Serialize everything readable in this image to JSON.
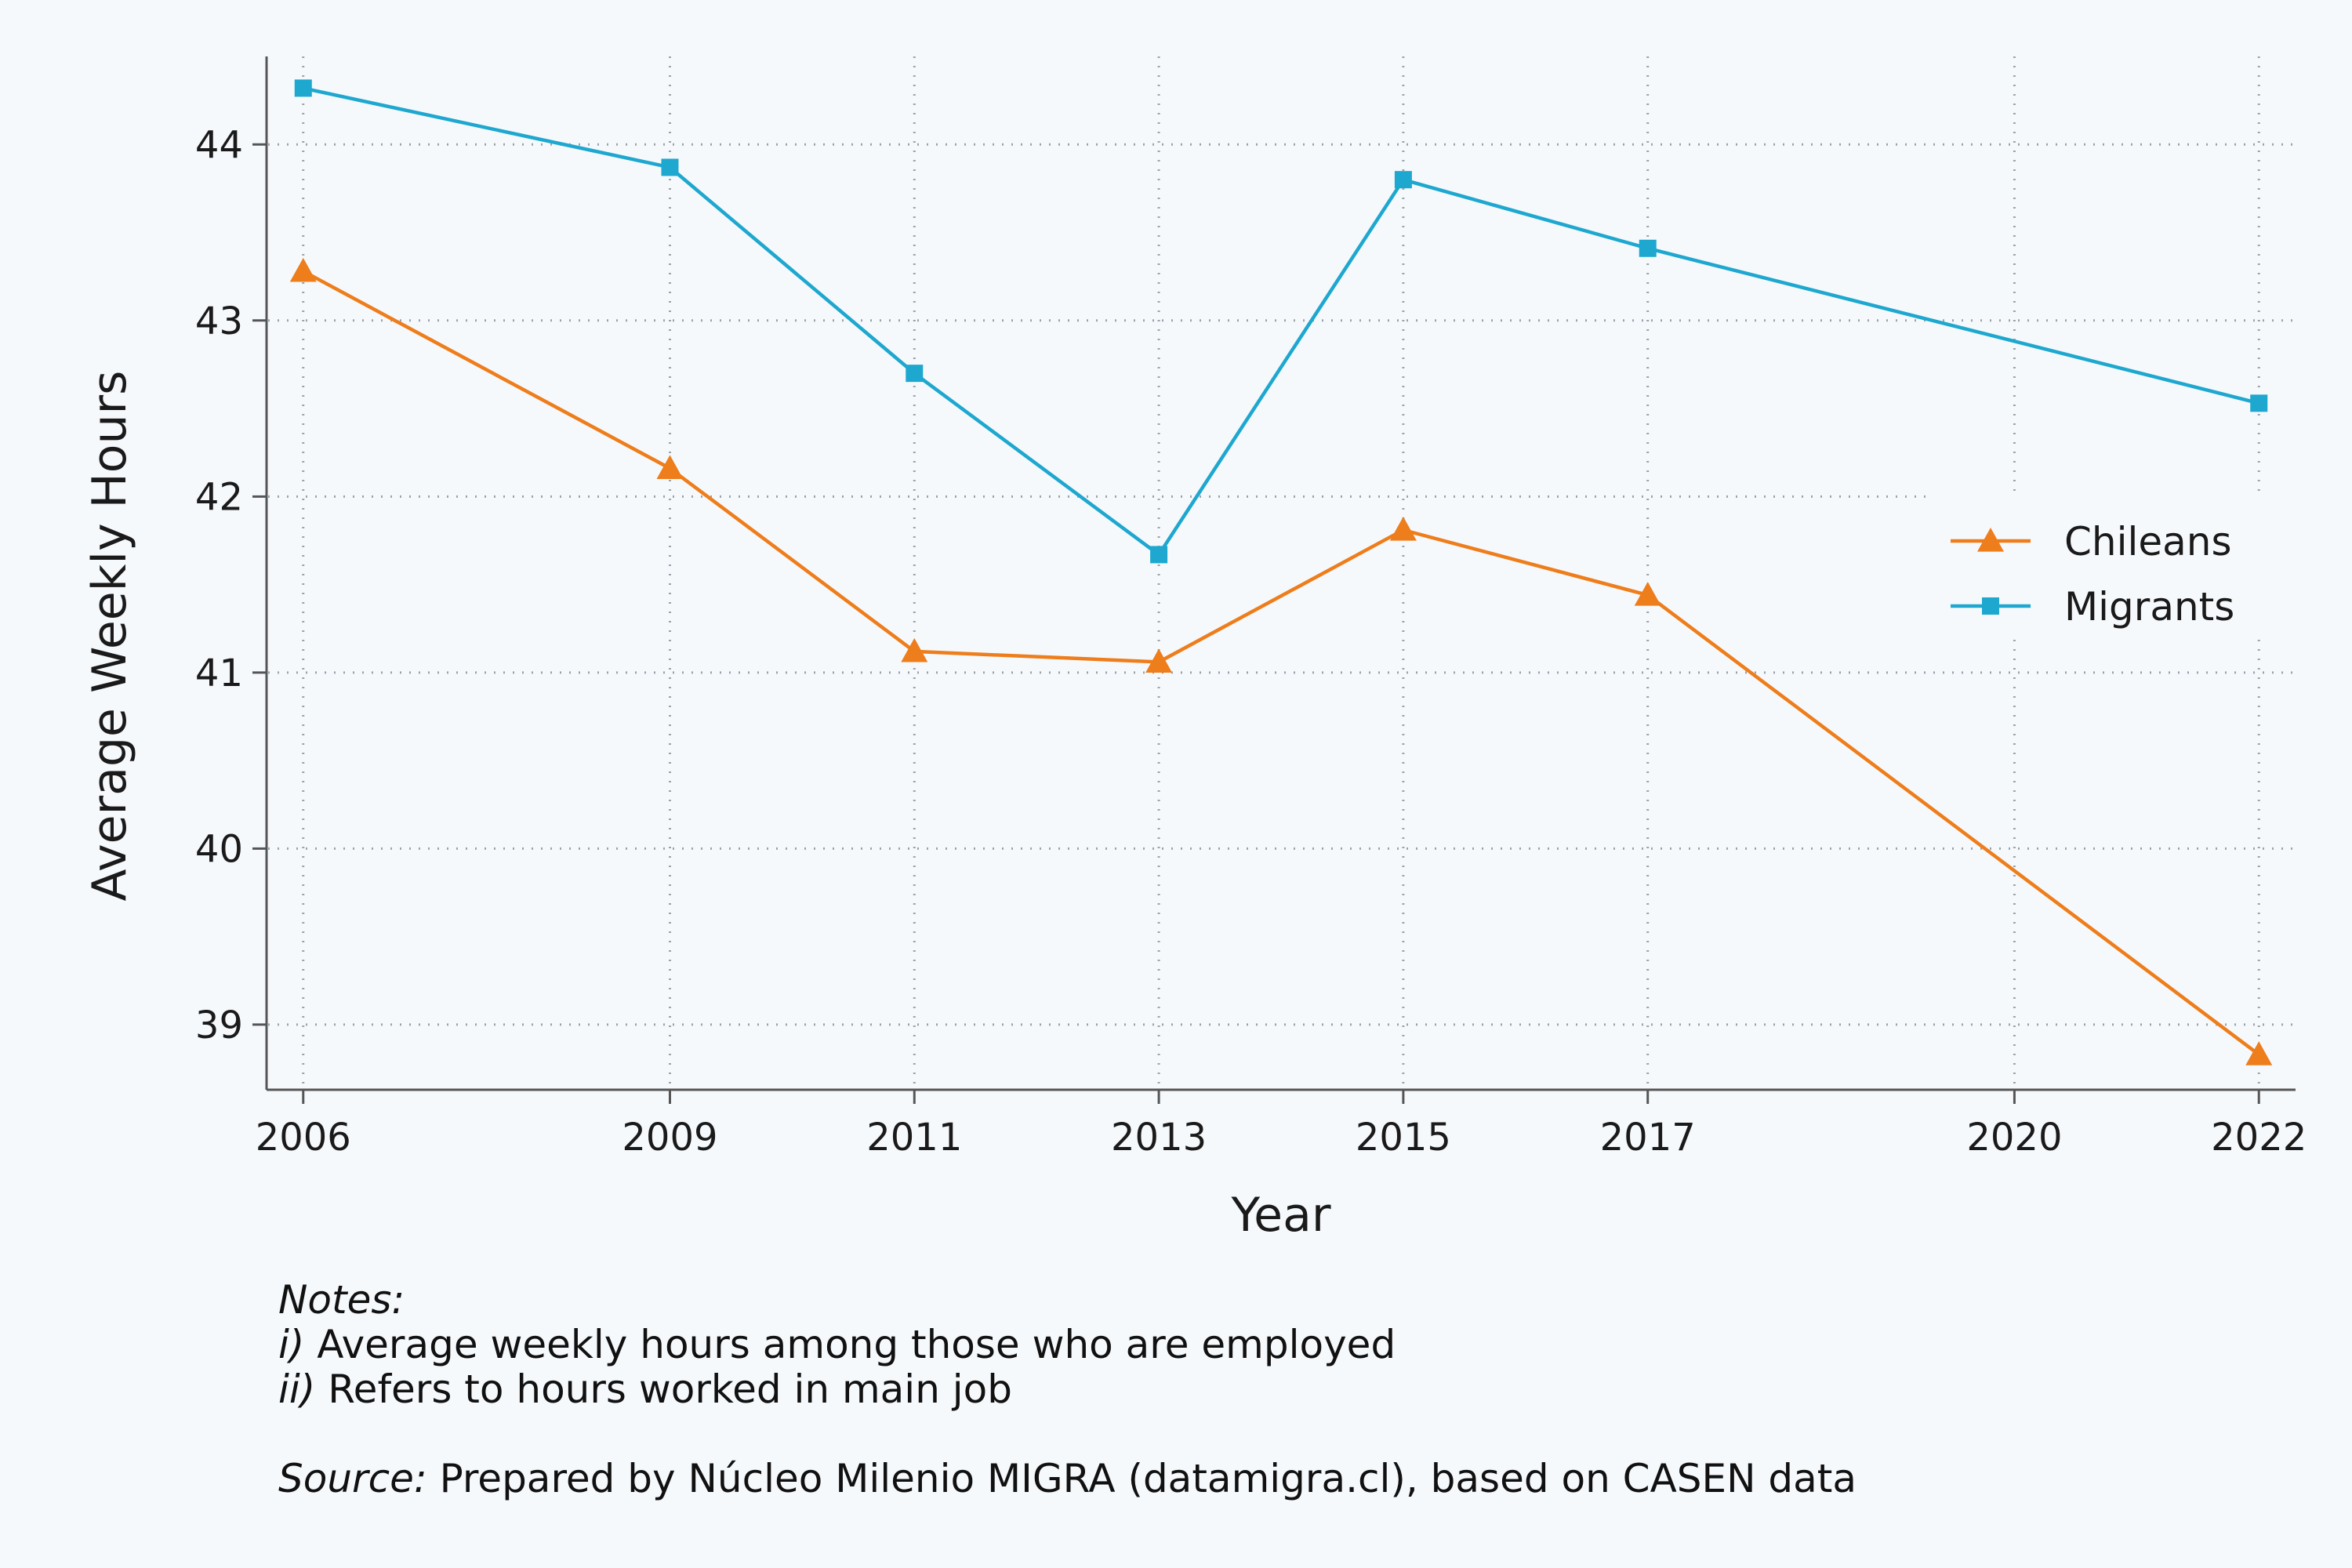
{
  "chart_data": {
    "type": "line",
    "title": "",
    "xlabel": "Year",
    "ylabel": "Average Weekly Hours",
    "x": [
      2006,
      2009,
      2011,
      2013,
      2015,
      2017,
      2020,
      2022
    ],
    "x_ticks": [
      "2006",
      "2009",
      "2011",
      "2013",
      "2015",
      "2017",
      "2020",
      "2022"
    ],
    "y_ticks": [
      "39",
      "40",
      "41",
      "42",
      "43",
      "44"
    ],
    "xlim": [
      2005.7,
      2022.3
    ],
    "ylim": [
      38.63,
      44.5
    ],
    "grid": true,
    "legend_position": "right",
    "series": [
      {
        "name": "Chileans",
        "color": "#ee7d1b",
        "marker": "triangle",
        "x": [
          2006,
          2009,
          2011,
          2013,
          2015,
          2017,
          2022
        ],
        "values": [
          43.28,
          42.16,
          41.12,
          41.06,
          41.81,
          41.44,
          38.83
        ]
      },
      {
        "name": "Migrants",
        "color": "#1ea7cf",
        "marker": "square",
        "x": [
          2006,
          2009,
          2011,
          2013,
          2015,
          2017,
          2022
        ],
        "values": [
          44.32,
          43.87,
          42.7,
          41.67,
          43.8,
          43.41,
          42.53
        ]
      }
    ]
  },
  "notes": {
    "heading": "Notes:",
    "items": [
      {
        "marker": "i)",
        "text": " Average weekly hours among those who are employed"
      },
      {
        "marker": "ii)",
        "text": " Refers to hours worked in main job"
      }
    ],
    "source_label": "Source:",
    "source_text": " Prepared by Núcleo Milenio MIGRA (datamigra.cl), based on CASEN data"
  }
}
